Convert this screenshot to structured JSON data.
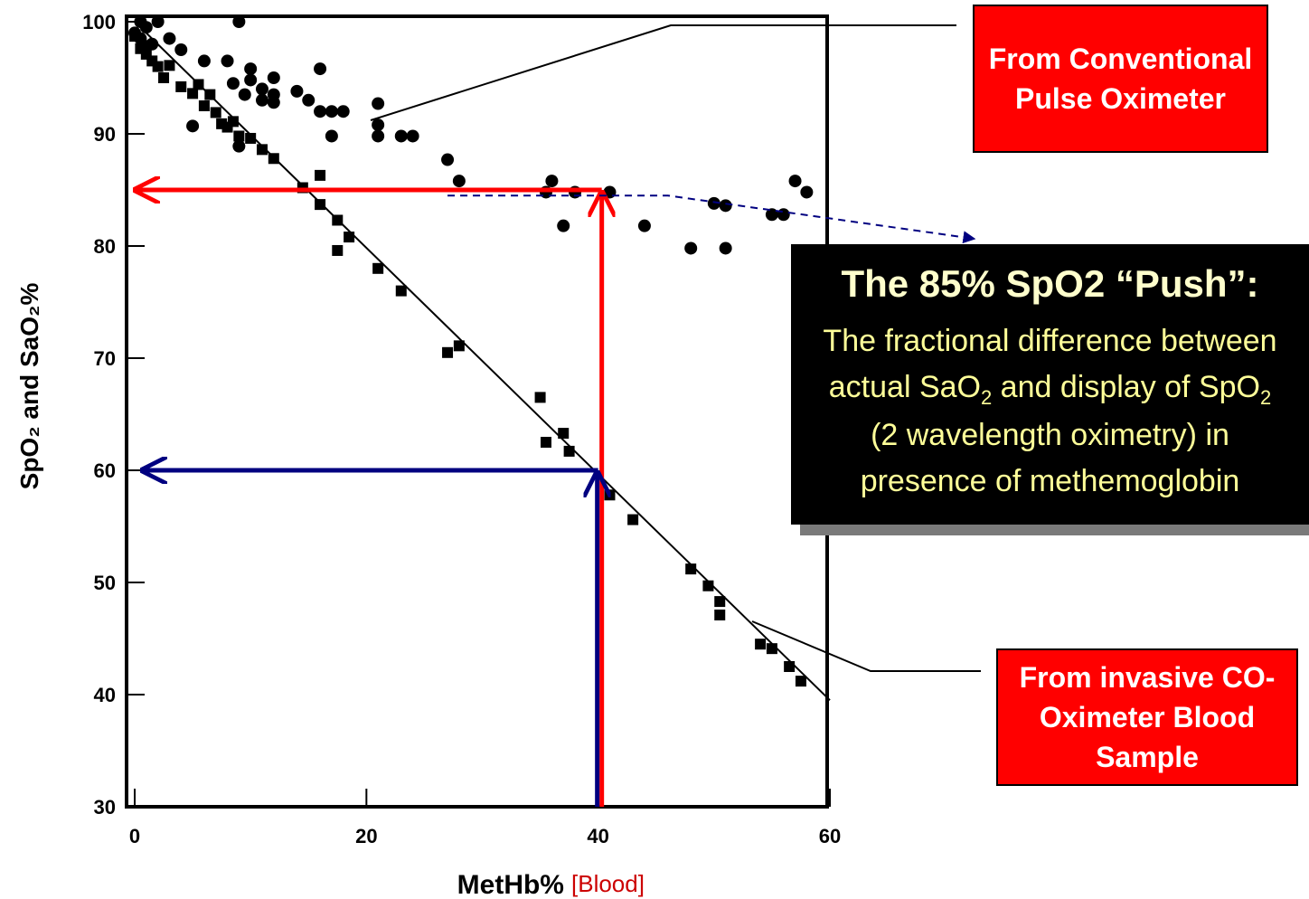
{
  "chart_data": {
    "type": "scatter",
    "title": "",
    "xlabel": "MetHb%",
    "xlabel_suffix": "[Blood]",
    "ylabel": "SpO₂ and SaO₂%",
    "xlim": [
      0,
      60
    ],
    "ylim": [
      30,
      100
    ],
    "x_ticks": [
      "0",
      "20",
      "40",
      "60"
    ],
    "y_ticks": [
      "30",
      "40",
      "50",
      "60",
      "70",
      "80",
      "90",
      "100"
    ],
    "grid": false,
    "series": [
      {
        "marker": "circle",
        "color": "#000000",
        "points": [
          [
            0,
            99
          ],
          [
            0.5,
            100
          ],
          [
            1,
            99.5
          ],
          [
            1.5,
            98
          ],
          [
            2,
            100
          ],
          [
            0.5,
            98.5
          ],
          [
            1,
            97.8
          ],
          [
            3,
            98.5
          ],
          [
            4,
            97.5
          ],
          [
            6,
            96.5
          ],
          [
            8,
            96.5
          ],
          [
            9,
            100
          ],
          [
            10,
            95.8
          ],
          [
            10,
            94.8
          ],
          [
            8.5,
            94.5
          ],
          [
            9.5,
            93.5
          ],
          [
            11,
            94
          ],
          [
            11,
            93
          ],
          [
            12,
            95
          ],
          [
            12,
            93.5
          ],
          [
            12,
            92.8
          ],
          [
            14,
            93.8
          ],
          [
            15,
            93
          ],
          [
            16,
            95.8
          ],
          [
            16,
            92
          ],
          [
            17,
            92
          ],
          [
            18,
            92
          ],
          [
            17,
            89.8
          ],
          [
            5,
            90.7
          ],
          [
            9,
            88.9
          ],
          [
            21,
            90.8
          ],
          [
            21,
            89.8
          ],
          [
            21,
            92.7
          ],
          [
            23,
            89.8
          ],
          [
            24,
            89.8
          ],
          [
            27,
            87.7
          ],
          [
            28,
            85.8
          ],
          [
            36,
            85.8
          ],
          [
            35.5,
            84.8
          ],
          [
            37,
            81.8
          ],
          [
            38,
            84.8
          ],
          [
            41,
            84.8
          ],
          [
            44,
            81.8
          ],
          [
            48,
            79.8
          ],
          [
            50,
            83.8
          ],
          [
            51,
            83.6
          ],
          [
            51,
            79.8
          ],
          [
            55,
            82.8
          ],
          [
            56,
            82.8
          ],
          [
            57,
            85.8
          ],
          [
            58,
            84.8
          ]
        ]
      },
      {
        "marker": "square",
        "color": "#000000",
        "points": [
          [
            0,
            98.7
          ],
          [
            0.5,
            97.6
          ],
          [
            1,
            97.1
          ],
          [
            1.5,
            96.5
          ],
          [
            2,
            96
          ],
          [
            2.5,
            95
          ],
          [
            3,
            96.1
          ],
          [
            4,
            94.2
          ],
          [
            5,
            93.6
          ],
          [
            5.5,
            94.4
          ],
          [
            6,
            92.5
          ],
          [
            6.5,
            93.5
          ],
          [
            7,
            91.9
          ],
          [
            7.5,
            90.9
          ],
          [
            8,
            90.6
          ],
          [
            8.5,
            91.1
          ],
          [
            9,
            89.8
          ],
          [
            10,
            89.6
          ],
          [
            11,
            88.6
          ],
          [
            12,
            87.8
          ],
          [
            14.5,
            85.2
          ],
          [
            16,
            86.3
          ],
          [
            16,
            83.7
          ],
          [
            17.5,
            82.3
          ],
          [
            17.5,
            79.6
          ],
          [
            18.5,
            80.8
          ],
          [
            21,
            78
          ],
          [
            23,
            76
          ],
          [
            27,
            70.5
          ],
          [
            28,
            71.1
          ],
          [
            35,
            66.5
          ],
          [
            35.5,
            62.5
          ],
          [
            37,
            63.3
          ],
          [
            37.5,
            61.7
          ],
          [
            41,
            57.8
          ],
          [
            43,
            55.6
          ],
          [
            48,
            51.2
          ],
          [
            49.5,
            49.7
          ],
          [
            50.5,
            48.3
          ],
          [
            50.5,
            47.1
          ],
          [
            54,
            44.5
          ],
          [
            55,
            44.1
          ],
          [
            56.5,
            42.5
          ],
          [
            57.5,
            41.2
          ]
        ]
      }
    ],
    "fit_line": {
      "from": [
        0,
        100
      ],
      "to": [
        60,
        39.5
      ],
      "color": "#000000"
    },
    "annotations": {
      "red_arrow": {
        "color": "#ff0000",
        "x": 40,
        "from_y": 30,
        "to_y": 85,
        "then_to_x": 0
      },
      "blue_arrow": {
        "color": "#000080",
        "x": 40,
        "from_y": 30,
        "to_y": 60,
        "then_to_x": 0
      },
      "dashed_arrow": {
        "color": "#000080",
        "from": [
          27,
          84.5
        ],
        "to": [
          46,
          84.5
        ]
      }
    }
  },
  "callouts": {
    "conventional": "From Conventional Pulse Oximeter",
    "invasive": "From invasive CO-Oximeter Blood Sample",
    "push_title": "The 85% SpO2 “Push”:",
    "push_line1": "The fractional difference between",
    "push_line2_a": "actual SaO",
    "push_line2_sub1": "2",
    "push_line2_b": " and display of SpO",
    "push_line2_sub2": "2",
    "push_line3": "(2 wavelength oximetry) in",
    "push_line4": "presence of methemoglobin"
  }
}
